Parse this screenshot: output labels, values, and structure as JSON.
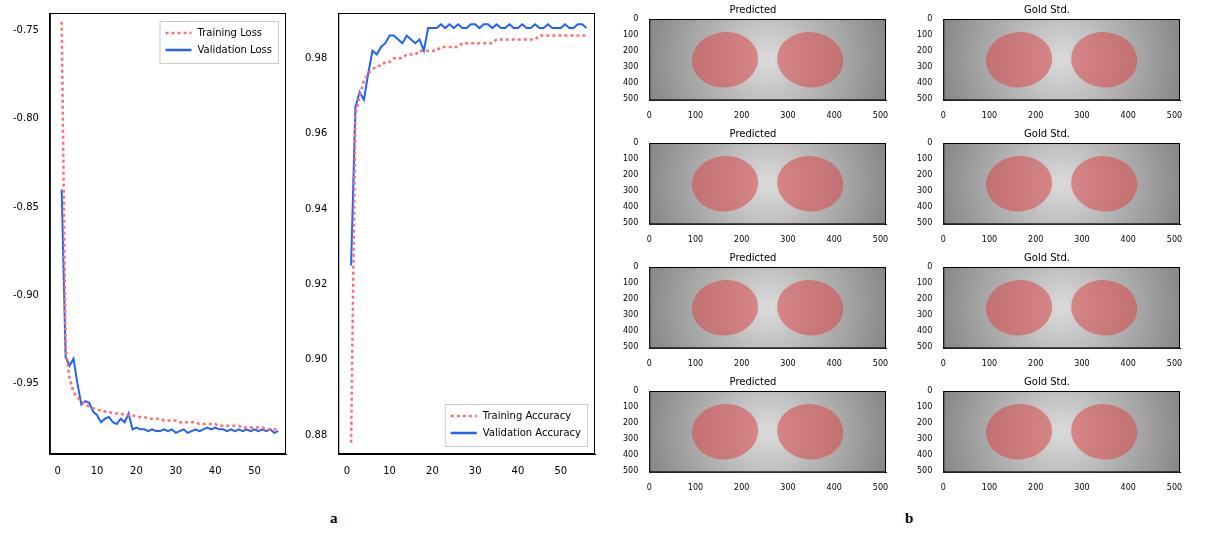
{
  "chart_data": [
    {
      "type": "line",
      "x": [
        1,
        2,
        3,
        4,
        5,
        6,
        7,
        8,
        9,
        10,
        11,
        12,
        13,
        14,
        15,
        16,
        17,
        18,
        19,
        20,
        21,
        22,
        23,
        24,
        25,
        26,
        27,
        28,
        29,
        30,
        31,
        32,
        33,
        34,
        35,
        36,
        37,
        38,
        39,
        40,
        41,
        42,
        43,
        44,
        45,
        46,
        47,
        48,
        49,
        50,
        51,
        52,
        53,
        54,
        55,
        56
      ],
      "xlim": [
        -2,
        58
      ],
      "xticks": [
        0,
        10,
        20,
        30,
        40,
        50
      ],
      "ylim": [
        -0.99,
        -0.74
      ],
      "yticks": [
        -0.75,
        {
          "value": -0.8,
          "label": "-0.80"
        },
        -0.85,
        {
          "value": -0.9,
          "label": "-0.90"
        },
        -0.95
      ],
      "grid": false,
      "legend": "upper right",
      "series": [
        {
          "name": "Training Loss",
          "color": "#ff6f6f",
          "line_style": "dotted",
          "values": [
            -0.745,
            -0.93,
            -0.947,
            -0.955,
            -0.958,
            -0.96,
            -0.962,
            -0.963,
            -0.964,
            -0.965,
            -0.965,
            -0.966,
            -0.966,
            -0.967,
            -0.967,
            -0.967,
            -0.968,
            -0.968,
            -0.968,
            -0.969,
            -0.969,
            -0.969,
            -0.97,
            -0.97,
            -0.97,
            -0.97,
            -0.971,
            -0.971,
            -0.971,
            -0.971,
            -0.972,
            -0.972,
            -0.972,
            -0.972,
            -0.972,
            -0.973,
            -0.973,
            -0.973,
            -0.973,
            -0.973,
            -0.974,
            -0.974,
            -0.974,
            -0.974,
            -0.974,
            -0.974,
            -0.975,
            -0.975,
            -0.975,
            -0.975,
            -0.975,
            -0.975,
            -0.976,
            -0.976,
            -0.976,
            -0.976
          ]
        },
        {
          "name": "Validation Loss",
          "color": "#1f62ff",
          "line_style": "solid",
          "values": [
            -0.84,
            -0.935,
            -0.94,
            -0.936,
            -0.95,
            -0.962,
            -0.96,
            -0.961,
            -0.966,
            -0.968,
            -0.972,
            -0.97,
            -0.969,
            -0.972,
            -0.973,
            -0.97,
            -0.972,
            -0.967,
            -0.976,
            -0.975,
            -0.976,
            -0.976,
            -0.977,
            -0.976,
            -0.977,
            -0.977,
            -0.976,
            -0.977,
            -0.976,
            -0.978,
            -0.977,
            -0.976,
            -0.978,
            -0.977,
            -0.976,
            -0.977,
            -0.976,
            -0.975,
            -0.976,
            -0.975,
            -0.976,
            -0.976,
            -0.977,
            -0.976,
            -0.977,
            -0.976,
            -0.977,
            -0.976,
            -0.977,
            -0.976,
            -0.977,
            -0.976,
            -0.977,
            -0.976,
            -0.978,
            -0.977
          ]
        }
      ]
    },
    {
      "type": "line",
      "x": [
        1,
        2,
        3,
        4,
        5,
        6,
        7,
        8,
        9,
        10,
        11,
        12,
        13,
        14,
        15,
        16,
        17,
        18,
        19,
        20,
        21,
        22,
        23,
        24,
        25,
        26,
        27,
        28,
        29,
        30,
        31,
        32,
        33,
        34,
        35,
        36,
        37,
        38,
        39,
        40,
        41,
        42,
        43,
        44,
        45,
        46,
        47,
        48,
        49,
        50,
        51,
        52,
        53,
        54,
        55,
        56
      ],
      "xlim": [
        -2,
        58
      ],
      "xticks": [
        0,
        10,
        20,
        30,
        40,
        50
      ],
      "ylim": [
        0.875,
        0.992
      ],
      "yticks": [
        0.88,
        {
          "value": 0.9,
          "label": "0.90"
        },
        0.92,
        0.94,
        0.96,
        0.98
      ],
      "grid": false,
      "legend": "lower right",
      "series": [
        {
          "name": "Training Accuracy",
          "color": "#ff6f6f",
          "line_style": "dotted",
          "values": [
            0.878,
            0.965,
            0.97,
            0.974,
            0.976,
            0.977,
            0.978,
            0.978,
            0.979,
            0.979,
            0.98,
            0.98,
            0.98,
            0.981,
            0.981,
            0.981,
            0.982,
            0.982,
            0.982,
            0.982,
            0.982,
            0.983,
            0.983,
            0.983,
            0.983,
            0.983,
            0.984,
            0.984,
            0.984,
            0.984,
            0.984,
            0.984,
            0.984,
            0.984,
            0.985,
            0.985,
            0.985,
            0.985,
            0.985,
            0.985,
            0.985,
            0.985,
            0.985,
            0.985,
            0.986,
            0.986,
            0.986,
            0.986,
            0.986,
            0.986,
            0.986,
            0.986,
            0.986,
            0.986,
            0.986,
            0.986
          ]
        },
        {
          "name": "Validation Accuracy",
          "color": "#1f62ff",
          "line_style": "solid",
          "values": [
            0.925,
            0.967,
            0.971,
            0.969,
            0.976,
            0.982,
            0.981,
            0.983,
            0.984,
            0.986,
            0.986,
            0.985,
            0.984,
            0.986,
            0.985,
            0.984,
            0.985,
            0.982,
            0.988,
            0.988,
            0.988,
            0.989,
            0.988,
            0.989,
            0.988,
            0.989,
            0.988,
            0.988,
            0.989,
            0.989,
            0.988,
            0.989,
            0.989,
            0.988,
            0.989,
            0.988,
            0.988,
            0.989,
            0.988,
            0.988,
            0.989,
            0.988,
            0.988,
            0.989,
            0.988,
            0.988,
            0.989,
            0.988,
            0.988,
            0.988,
            0.989,
            0.988,
            0.988,
            0.989,
            0.989,
            0.988
          ]
        }
      ]
    }
  ],
  "panel_labels": [
    "a",
    "b"
  ],
  "image_grid": {
    "titles": [
      "Predicted",
      "Gold Std.",
      "Predicted",
      "Gold Std.",
      "Predicted",
      "Gold Std.",
      "Predicted",
      "Gold Std."
    ],
    "xlim": [
      0,
      512
    ],
    "xticks": [
      0,
      100,
      200,
      300,
      400,
      500
    ],
    "ylim": [
      0,
      512
    ],
    "yticks": [
      0,
      100,
      200,
      300,
      400,
      500
    ]
  }
}
